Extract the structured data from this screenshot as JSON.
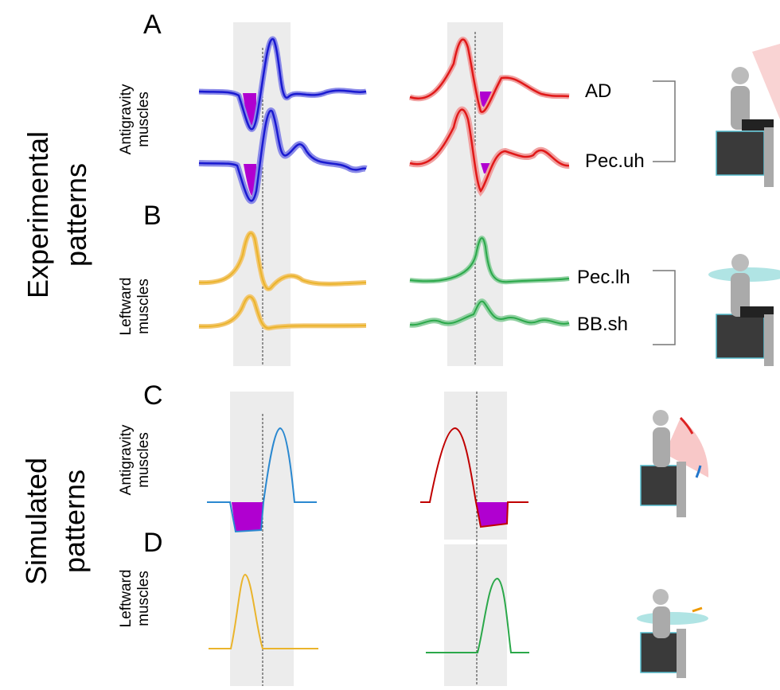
{
  "row_groups": [
    {
      "label_lines": [
        "Experimental",
        "patterns"
      ],
      "panels": [
        {
          "letter": "A",
          "muscle_group_lines": [
            "Antigravity",
            "muscles"
          ],
          "traces": [
            "AD",
            "Pec.uh"
          ]
        },
        {
          "letter": "B",
          "muscle_group_lines": [
            "Leftward",
            "muscles"
          ],
          "traces": [
            "Pec.lh",
            "BB.sh"
          ]
        }
      ]
    },
    {
      "label_lines": [
        "Simulated",
        "patterns"
      ],
      "panels": [
        {
          "letter": "C",
          "muscle_group_lines": [
            "Antigravity",
            "muscles"
          ]
        },
        {
          "letter": "D",
          "muscle_group_lines": [
            "Leftward",
            "muscles"
          ]
        }
      ]
    }
  ]
}
